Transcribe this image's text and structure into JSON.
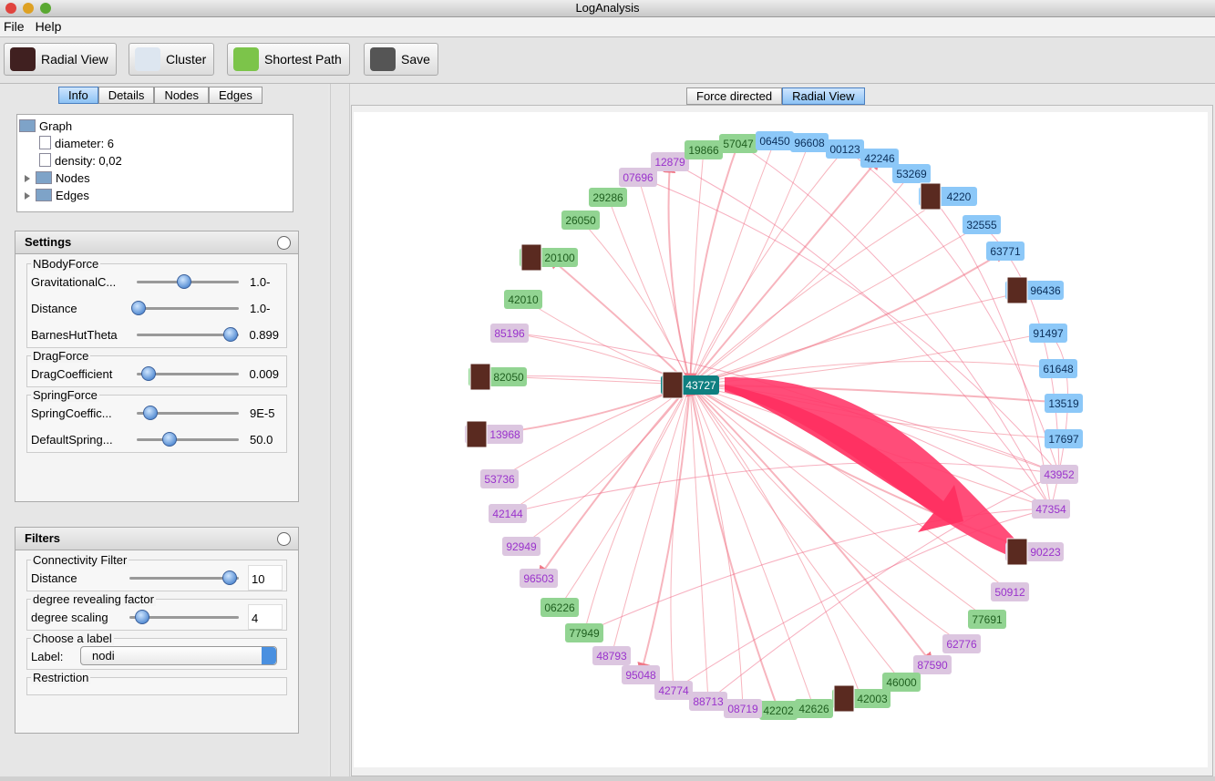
{
  "window": {
    "title": "LogAnalysis"
  },
  "menu": [
    "File",
    "Help"
  ],
  "toolbar": [
    "Radial View",
    "Cluster",
    "Shortest Path",
    "Save"
  ],
  "left_panel": {
    "tabs": [
      "Info",
      "Details",
      "Nodes",
      "Edges"
    ],
    "tree": [
      "Graph",
      "diameter: 6",
      "density: 0,02",
      "Nodes",
      "Edges"
    ],
    "settings": {
      "title": "Settings",
      "groups": [
        {
          "title": "NBodyForce",
          "rows": [
            {
              "label": "GravitationalC...",
              "value": "-1.0"
            },
            {
              "label": "Distance",
              "value": "-1.0"
            },
            {
              "label": "BarnesHutTheta",
              "value": "0.899"
            }
          ]
        },
        {
          "title": "DragForce",
          "rows": [
            {
              "label": "DragCoefficient",
              "value": "0.009"
            }
          ]
        },
        {
          "title": "SpringForce",
          "rows": [
            {
              "label": "SpringCoeffic...",
              "value": "9E-5"
            },
            {
              "label": "DefaultSpring...",
              "value": "50.0"
            }
          ]
        }
      ]
    },
    "filters": {
      "title": "Filters",
      "groups": [
        {
          "title": "Connectivity Filter",
          "rows": [
            {
              "label": "Distance",
              "value": "10"
            }
          ]
        },
        {
          "title": "degree revealing factor",
          "rows": [
            {
              "label": "degree scaling",
              "value": "4"
            }
          ]
        },
        {
          "title": "Choose a label",
          "rows": [
            {
              "label": "Label:",
              "value": "nodi"
            }
          ]
        },
        {
          "title": "Restriction",
          "rows": []
        }
      ]
    }
  },
  "graph_view": {
    "tabs": [
      "Force directed",
      "Radial View"
    ],
    "center": {
      "label": "43727",
      "color": "#0f7f80",
      "image": true
    },
    "nodes": [
      {
        "label": "57047",
        "color": "green"
      },
      {
        "label": "06450",
        "color": "blue"
      },
      {
        "label": "96608",
        "color": "blue"
      },
      {
        "label": "00123",
        "color": "blue"
      },
      {
        "label": "42246",
        "color": "blue"
      },
      {
        "label": "53269",
        "color": "blue"
      },
      {
        "label": "4220",
        "color": "blue",
        "image": true
      },
      {
        "label": "32555",
        "color": "blue"
      },
      {
        "label": "63771",
        "color": "blue"
      },
      {
        "label": "96436",
        "color": "blue",
        "image": true
      },
      {
        "label": "91497",
        "color": "blue"
      },
      {
        "label": "61648",
        "color": "blue"
      },
      {
        "label": "13519",
        "color": "blue"
      },
      {
        "label": "17697",
        "color": "blue"
      },
      {
        "label": "43952",
        "color": "purple"
      },
      {
        "label": "47354",
        "color": "purple"
      },
      {
        "label": "90223",
        "color": "purple",
        "image": true
      },
      {
        "label": "50912",
        "color": "purple"
      },
      {
        "label": "77691",
        "color": "green"
      },
      {
        "label": "62776",
        "color": "purple"
      },
      {
        "label": "87590",
        "color": "purple"
      },
      {
        "label": "46000",
        "color": "green"
      },
      {
        "label": "42003",
        "color": "green",
        "image": true
      },
      {
        "label": "42626",
        "color": "green"
      },
      {
        "label": "42202",
        "color": "green"
      },
      {
        "label": "08719",
        "color": "purple"
      },
      {
        "label": "88713",
        "color": "purple"
      },
      {
        "label": "42774",
        "color": "purple"
      },
      {
        "label": "95048",
        "color": "purple"
      },
      {
        "label": "48793",
        "color": "purple"
      },
      {
        "label": "77949",
        "color": "green"
      },
      {
        "label": "06226",
        "color": "green"
      },
      {
        "label": "96503",
        "color": "purple"
      },
      {
        "label": "92949",
        "color": "purple"
      },
      {
        "label": "42144",
        "color": "purple"
      },
      {
        "label": "53736",
        "color": "purple"
      },
      {
        "label": "13968",
        "color": "purple",
        "image": true
      },
      {
        "label": "82050",
        "color": "green",
        "image": true
      },
      {
        "label": "85196",
        "color": "purple"
      },
      {
        "label": "42010",
        "color": "green"
      },
      {
        "label": "20100",
        "color": "green",
        "image": true
      },
      {
        "label": "26050",
        "color": "green"
      },
      {
        "label": "29286",
        "color": "green"
      },
      {
        "label": "07696",
        "color": "purple"
      },
      {
        "label": "12879",
        "color": "purple"
      },
      {
        "label": "19866",
        "color": "green"
      }
    ]
  }
}
